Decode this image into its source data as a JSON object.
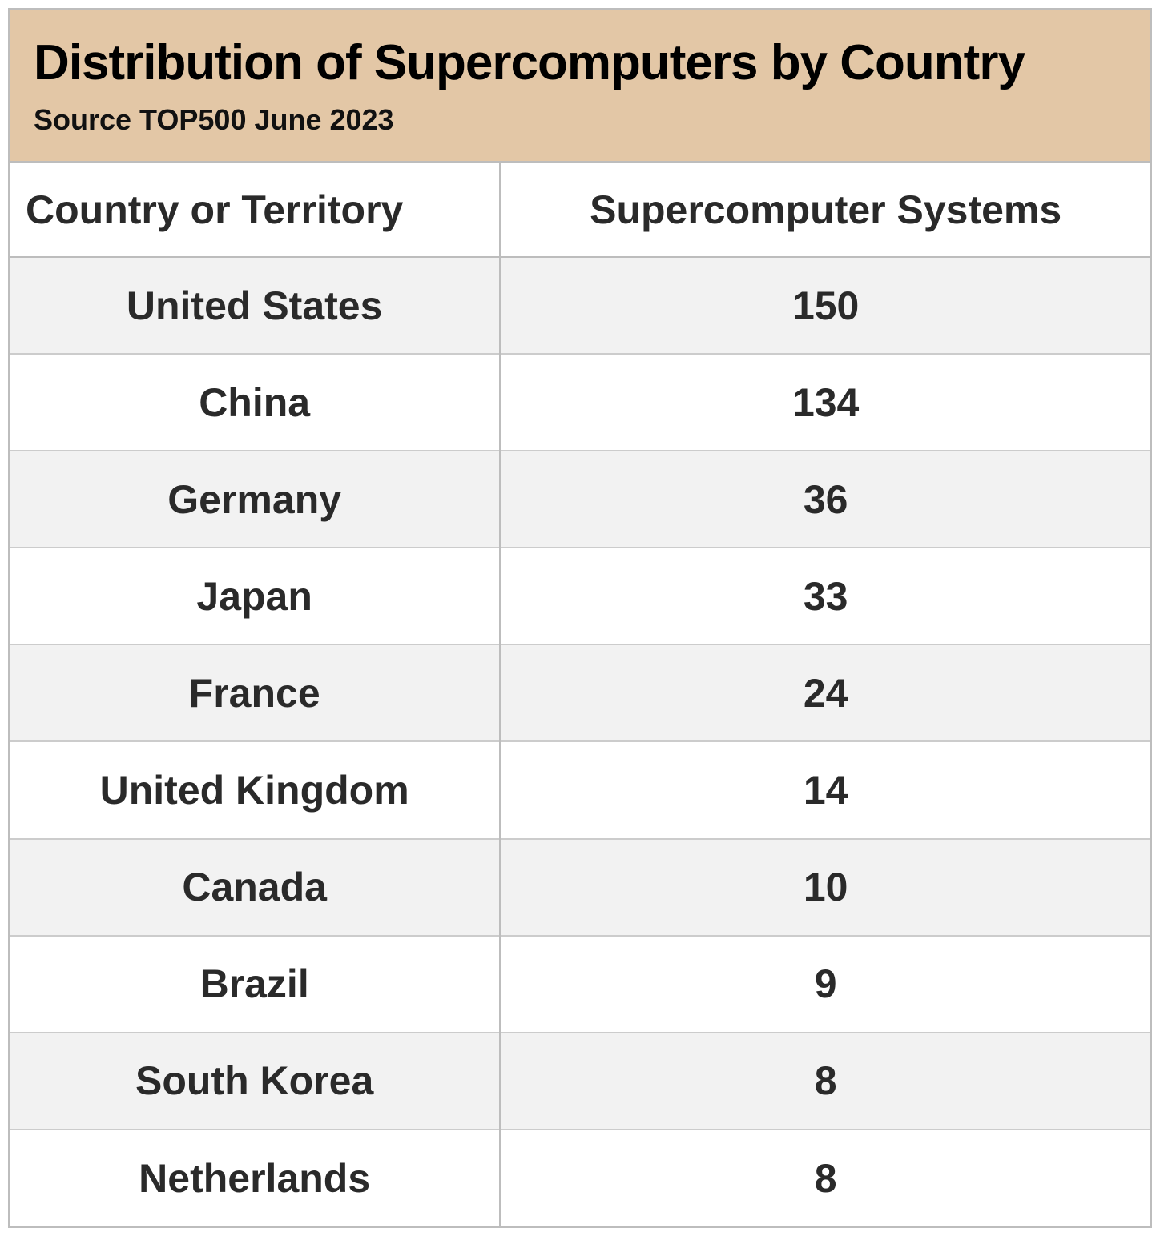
{
  "header": {
    "title": "Distribution of Supercomputers by Country",
    "source": "Source TOP500 June 2023"
  },
  "chart_data": {
    "type": "table",
    "title": "Distribution of Supercomputers by Country",
    "subtitle": "Source TOP500 June 2023",
    "columns": [
      "Country or Territory",
      "Supercomputer Systems"
    ],
    "rows": [
      [
        "United States",
        150
      ],
      [
        "China",
        134
      ],
      [
        "Germany",
        36
      ],
      [
        "Japan",
        33
      ],
      [
        "France",
        24
      ],
      [
        "United Kingdom",
        14
      ],
      [
        "Canada",
        10
      ],
      [
        "Brazil",
        9
      ],
      [
        "South Korea",
        8
      ],
      [
        "Netherlands",
        8
      ]
    ]
  },
  "colors": {
    "header_bg": "#e3c7a6",
    "row_alt_bg": "#f2f2f2",
    "border": "#bdbdbd",
    "text": "#222222"
  }
}
